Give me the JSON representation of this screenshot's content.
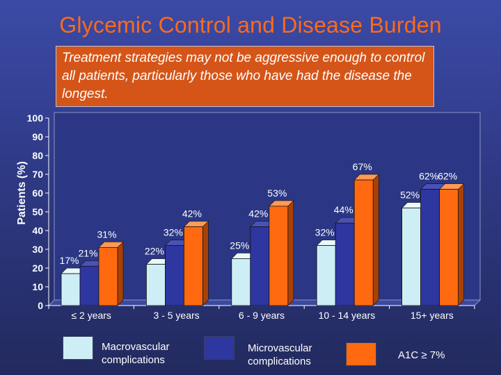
{
  "slide": {
    "title": "Glycemic Control and Disease Burden",
    "callout": "Treatment strategies may not be aggressive enough to control all patients, particularly those who have had the disease the longest."
  },
  "colors": {
    "macrovascular": "#cdeef5",
    "microvascular": "#2e36a0",
    "a1c": "#ff6a10",
    "title": "#ff6a1a"
  },
  "chart_data": {
    "type": "bar",
    "ylabel": "Patients (%)",
    "ylim": [
      0,
      100
    ],
    "yticks": [
      0,
      10,
      20,
      30,
      40,
      50,
      60,
      70,
      80,
      90,
      100
    ],
    "categories": [
      "≤ 2 years",
      "3 - 5 years",
      "6 - 9 years",
      "10 - 14 years",
      "15+ years"
    ],
    "series": [
      {
        "name": "Macrovascular complications",
        "values": [
          17,
          22,
          25,
          32,
          52
        ],
        "labels": [
          "17%",
          "22%",
          "25%",
          "32%",
          "52%"
        ]
      },
      {
        "name": "Microvascular complications",
        "values": [
          21,
          32,
          42,
          44,
          62
        ],
        "labels": [
          "21%",
          "32%",
          "42%",
          "44%",
          "62%"
        ]
      },
      {
        "name": "A1C ≥ 7%",
        "values": [
          31,
          42,
          53,
          67,
          62
        ],
        "labels": [
          "31%",
          "42%",
          "53%",
          "67%",
          "62%"
        ]
      }
    ],
    "legend": "bottom"
  }
}
